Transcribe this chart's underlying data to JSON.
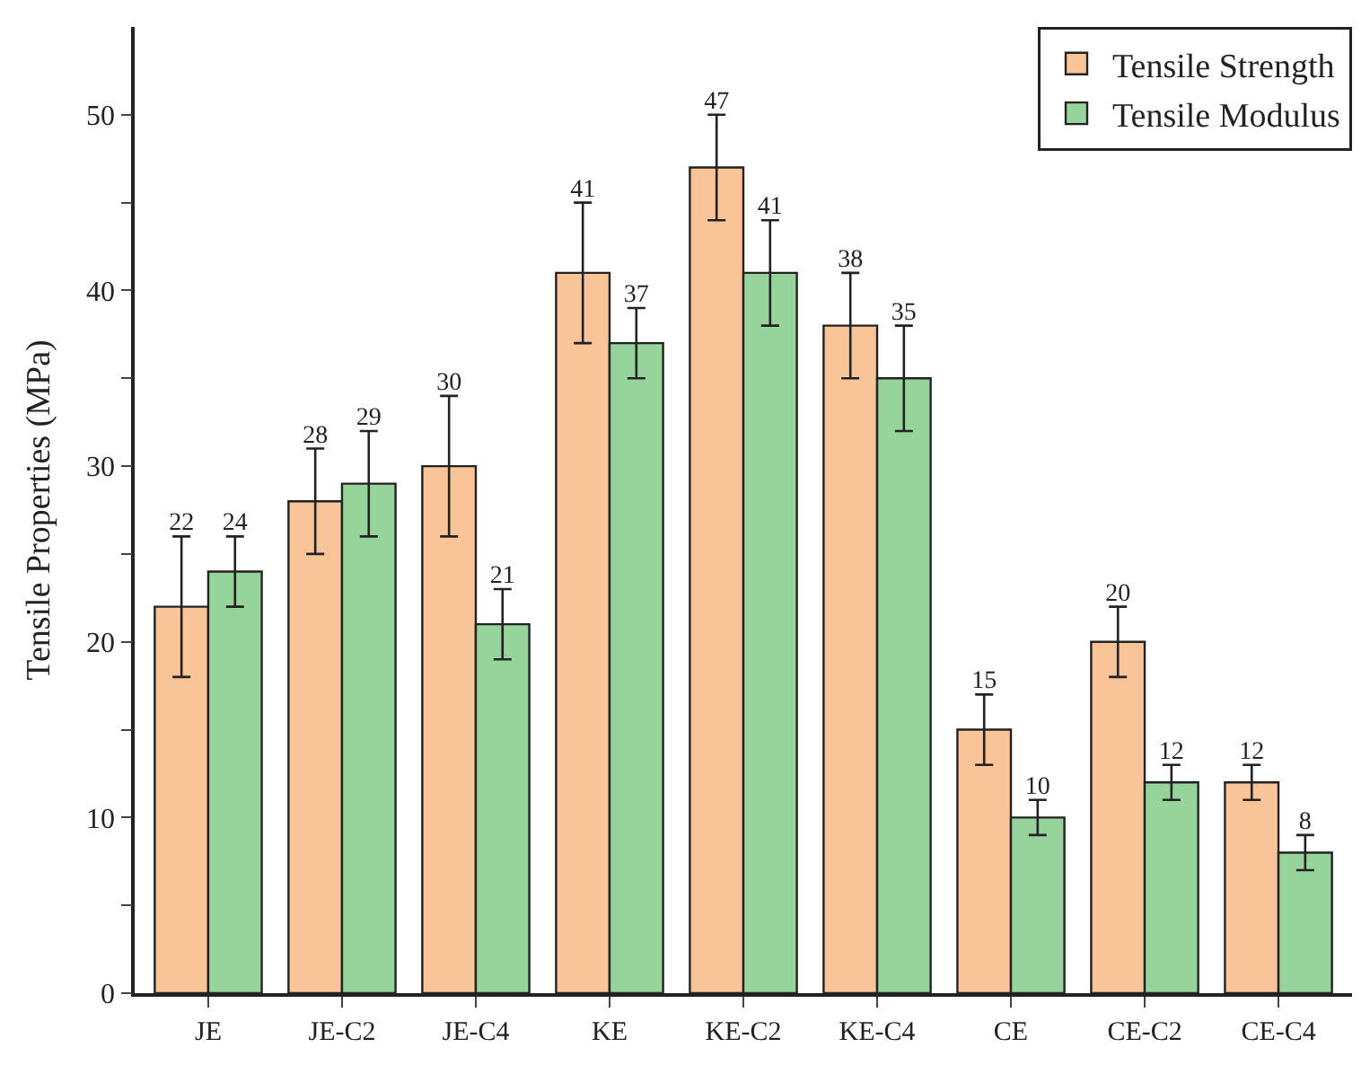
{
  "chart_data": {
    "type": "bar",
    "ylabel": "Tensile Properties (MPa)",
    "categories": [
      "JE",
      "JE-C2",
      "JE-C4",
      "KE",
      "KE-C2",
      "KE-C4",
      "CE",
      "CE-C2",
      "CE-C4"
    ],
    "series": [
      {
        "name": "Tensile Strength",
        "color": "#f9c498",
        "values": [
          22,
          28,
          30,
          41,
          47,
          38,
          15,
          20,
          12
        ],
        "errors": [
          4,
          3,
          4,
          4,
          3,
          3,
          2,
          2,
          1
        ]
      },
      {
        "name": "Tensile Modulus",
        "color": "#96d49b",
        "values": [
          24,
          29,
          21,
          37,
          41,
          35,
          10,
          12,
          8
        ],
        "errors": [
          2,
          3,
          2,
          2,
          3,
          3,
          1,
          1,
          1
        ]
      }
    ],
    "ylim": [
      0,
      55
    ],
    "yticks": [
      0,
      {
        "value": 5,
        "label": null
      },
      10,
      {
        "value": 15,
        "label": null
      },
      20,
      {
        "value": 25,
        "label": null
      },
      30,
      {
        "value": 35,
        "label": null
      },
      40,
      {
        "value": 45,
        "label": null
      },
      50
    ],
    "data_labels": true,
    "legend": "top right"
  }
}
